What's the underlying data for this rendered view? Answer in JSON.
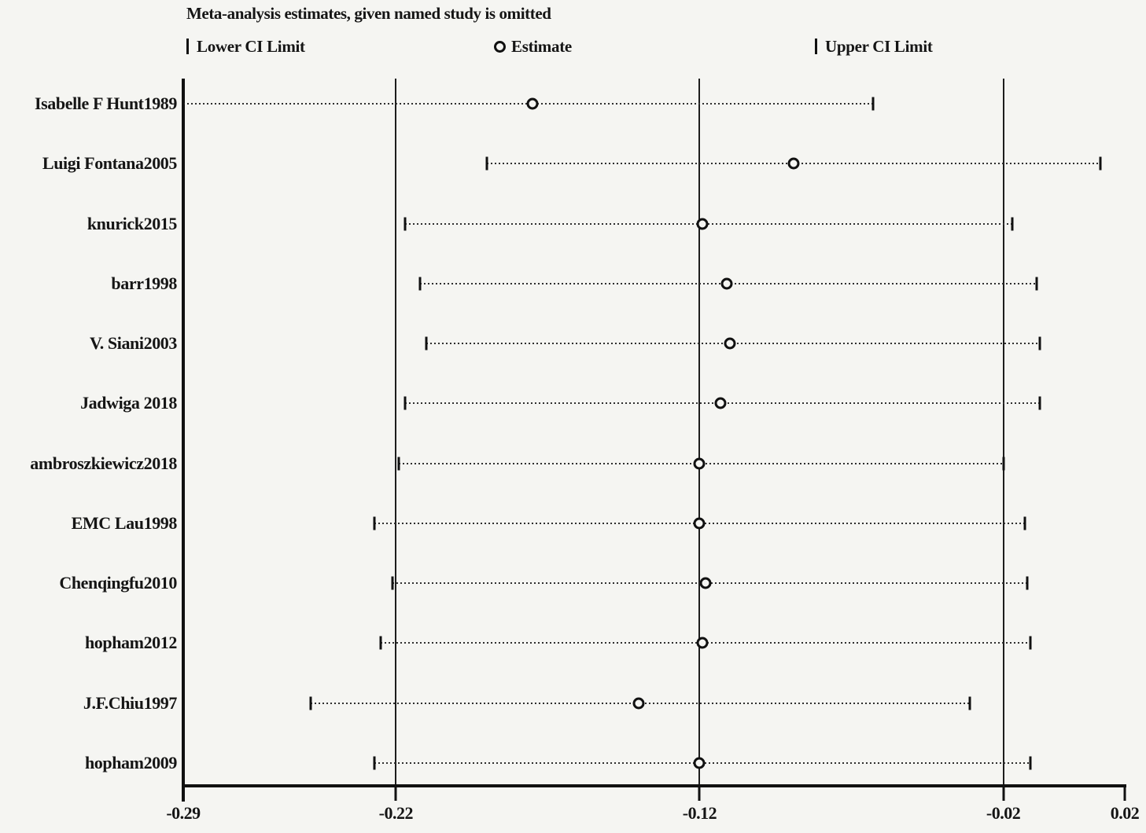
{
  "title": "Meta-analysis estimates, given named study is omitted",
  "legend": {
    "lower_label": "Lower CI Limit",
    "estimate_label": "Estimate",
    "upper_label": "Upper CI Limit"
  },
  "chart_data": {
    "type": "scatter",
    "subtype": "leave-one-out-forest",
    "title": "Meta-analysis estimates, given named study is omitted",
    "xlabel": "",
    "ylabel": "",
    "xlim": [
      -0.29,
      0.02
    ],
    "x_ticks": [
      -0.29,
      -0.22,
      -0.12,
      -0.02,
      0.02
    ],
    "x_tick_labels": [
      "-0.29",
      "-0.22",
      "-0.12",
      "-0.02",
      "0.02"
    ],
    "gridline_values": [
      -0.22,
      -0.12,
      -0.02
    ],
    "grid": "vertical-lines-only",
    "legend_position": "top",
    "studies": [
      {
        "label": "Isabelle F Hunt1989",
        "lower": -0.29,
        "estimate": -0.175,
        "upper": -0.063
      },
      {
        "label": "Luigi Fontana2005",
        "lower": -0.19,
        "estimate": -0.089,
        "upper": 0.012
      },
      {
        "label": "knurick2015",
        "lower": -0.217,
        "estimate": -0.119,
        "upper": -0.017
      },
      {
        "label": "barr1998",
        "lower": -0.212,
        "estimate": -0.111,
        "upper": -0.009
      },
      {
        "label": "V. Siani2003",
        "lower": -0.21,
        "estimate": -0.11,
        "upper": -0.008
      },
      {
        "label": "Jadwiga 2018",
        "lower": -0.217,
        "estimate": -0.113,
        "upper": -0.008
      },
      {
        "label": "ambroszkiewicz2018",
        "lower": -0.219,
        "estimate": -0.12,
        "upper": -0.02
      },
      {
        "label": "EMC Lau1998",
        "lower": -0.227,
        "estimate": -0.12,
        "upper": -0.013
      },
      {
        "label": "Chenqingfu2010",
        "lower": -0.221,
        "estimate": -0.118,
        "upper": -0.012
      },
      {
        "label": "hopham2012",
        "lower": -0.225,
        "estimate": -0.119,
        "upper": -0.011
      },
      {
        "label": "J.F.Chiu1997",
        "lower": -0.248,
        "estimate": -0.14,
        "upper": -0.031
      },
      {
        "label": "hopham2009",
        "lower": -0.227,
        "estimate": -0.12,
        "upper": -0.011
      }
    ],
    "colors": {
      "marker": "#111111",
      "line": "#2e2e2e",
      "text": "#151515",
      "background": "#f5f5f2"
    }
  }
}
